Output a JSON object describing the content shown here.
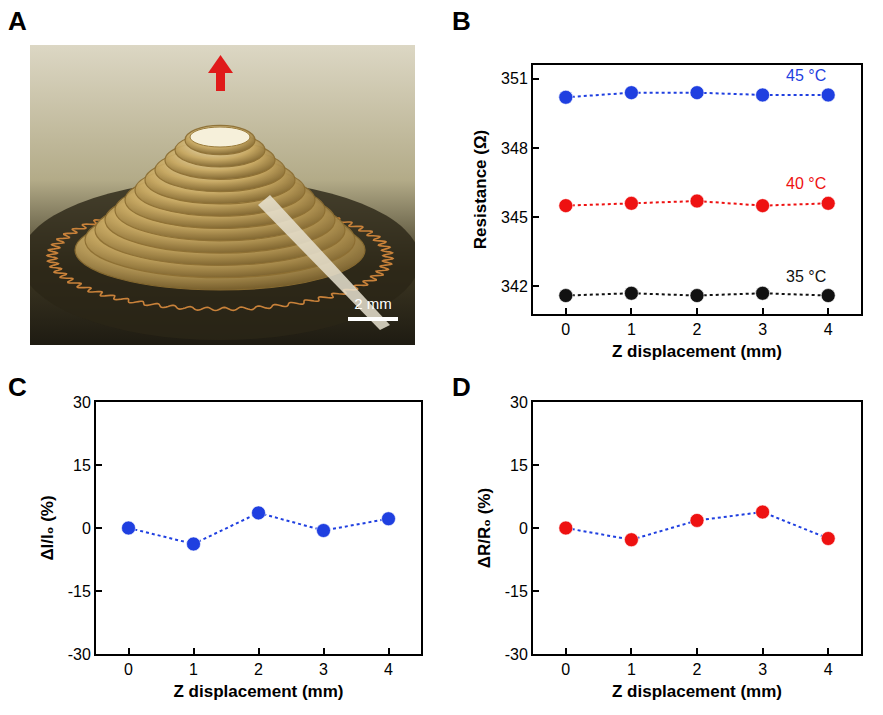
{
  "photo": {
    "panel_label": "A",
    "scale_bar": "2 mm"
  },
  "chart_data": [
    {
      "panel_label": "B",
      "type": "line",
      "x_label": "Z displacement (mm)",
      "y_label": "Resistance (Ω)",
      "x": [
        0,
        1,
        2,
        3,
        4
      ],
      "series": [
        {
          "name": "45 °C",
          "color": "#1f3fe0",
          "values": [
            350.2,
            350.4,
            350.4,
            350.3,
            350.3
          ]
        },
        {
          "name": "40 °C",
          "color": "#ee1111",
          "values": [
            345.5,
            345.6,
            345.7,
            345.5,
            345.6
          ]
        },
        {
          "name": "35 °C",
          "color": "#111111",
          "values": [
            341.6,
            341.7,
            341.6,
            341.7,
            341.6
          ]
        }
      ],
      "xlim": [
        -0.5,
        4.5
      ],
      "xticks": [
        0,
        1,
        2,
        3,
        4
      ],
      "ylim": [
        340.8,
        351.6
      ],
      "yticks": [
        342,
        345,
        348,
        351
      ],
      "marker": "circle",
      "line_style": "dotted"
    },
    {
      "panel_label": "C",
      "type": "line",
      "x_label": "Z displacement (mm)",
      "y_label": "ΔI/I₀ (%)",
      "x": [
        0,
        1,
        2,
        3,
        4
      ],
      "series": [
        {
          "color": "#1f3fe0",
          "values": [
            0,
            -3.8,
            3.6,
            -0.6,
            2.2
          ]
        }
      ],
      "xlim": [
        -0.5,
        4.5
      ],
      "xticks": [
        0,
        1,
        2,
        3,
        4
      ],
      "ylim": [
        -30,
        30
      ],
      "yticks": [
        -30,
        -15,
        0,
        15,
        30
      ],
      "marker": "circle",
      "line_style": "dotted"
    },
    {
      "panel_label": "D",
      "type": "line",
      "x_label": "Z displacement (mm)",
      "y_label": "ΔR/R₀ (%)",
      "x": [
        0,
        1,
        2,
        3,
        4
      ],
      "color": "#1f3fe0",
      "series": [
        {
          "color": "#ee1111",
          "values": [
            0,
            -2.8,
            1.8,
            3.8,
            -2.5
          ]
        }
      ],
      "xlim": [
        -0.5,
        4.5
      ],
      "xticks": [
        0,
        1,
        2,
        3,
        4
      ],
      "ylim": [
        -30,
        30
      ],
      "yticks": [
        -30,
        -15,
        0,
        15,
        30
      ],
      "marker": "circle",
      "line_style": "dotted"
    }
  ]
}
